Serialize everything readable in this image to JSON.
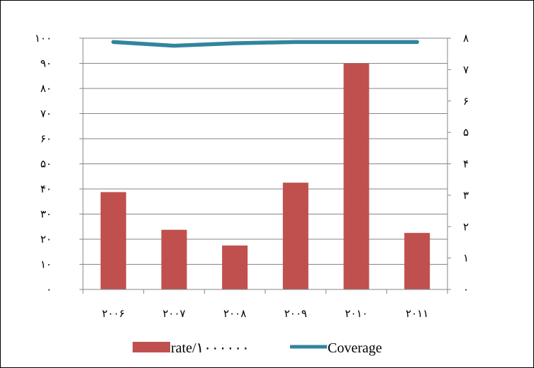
{
  "chart_data": {
    "type": "bar",
    "categories": [
      "۲۰۰۶",
      "۲۰۰۷",
      "۲۰۰۸",
      "۲۰۰۹",
      "۲۰۱۰",
      "۲۰۱۱"
    ],
    "series": [
      {
        "name": "rate/۱۰۰۰۰۰۰",
        "type": "bar",
        "axis": "right",
        "color": "#c0504d",
        "values": [
          3.1,
          1.9,
          1.4,
          3.4,
          7.2,
          1.8
        ]
      },
      {
        "name": "Coverage",
        "type": "line",
        "axis": "left",
        "color": "#31859c",
        "values": [
          98.5,
          97.0,
          98.0,
          98.5,
          98.5,
          98.5
        ]
      }
    ],
    "y_left": {
      "range": [
        0,
        100
      ],
      "tick_values": [
        0,
        10,
        20,
        30,
        40,
        50,
        60,
        70,
        80,
        90,
        100
      ],
      "tick_labels": [
        "۰",
        "۱۰",
        "۲۰",
        "۳۰",
        "۴۰",
        "۵۰",
        "۶۰",
        "۷۰",
        "۸۰",
        "۹۰",
        "۱۰۰"
      ]
    },
    "y_right": {
      "range": [
        0,
        8
      ],
      "tick_values": [
        0,
        1,
        2,
        3,
        4,
        5,
        6,
        7,
        8
      ],
      "tick_labels": [
        "۰",
        "۱",
        "۲",
        "۳",
        "۴",
        "۵",
        "۶",
        "۷",
        "۸"
      ]
    },
    "grid": true,
    "legend_position": "bottom",
    "title": "",
    "xlabel": "",
    "ylabel": ""
  }
}
